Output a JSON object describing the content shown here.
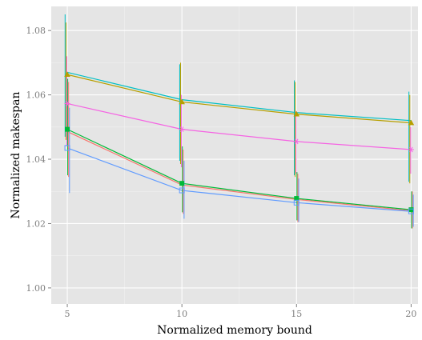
{
  "chart_data": {
    "type": "line",
    "xlabel": "Normalized memory bound",
    "ylabel": "Normalized makespan",
    "xlim": [
      4.3,
      20.3
    ],
    "ylim": [
      0.995,
      1.0875
    ],
    "xticks": [
      5,
      10,
      15,
      20
    ],
    "yticks": [
      1.0,
      1.02,
      1.04,
      1.06,
      1.08
    ],
    "ytick_labels": [
      "1.00",
      "1.02",
      "1.04",
      "1.06",
      "1.08"
    ],
    "xtick_labels": [
      "5",
      "10",
      "15",
      "20"
    ],
    "grid": true,
    "legend": "none",
    "x": [
      5,
      10,
      15,
      20
    ],
    "series": [
      {
        "color": "#00bfc4",
        "marker": "none",
        "values": [
          1.067,
          1.0585,
          1.0545,
          1.052
        ],
        "error_low": [
          1.047,
          1.0395,
          1.035,
          1.033
        ],
        "error_high": [
          1.085,
          1.0695,
          1.0645,
          1.061
        ]
      },
      {
        "color": "#b79f00",
        "marker": "triangle",
        "values": [
          1.0663,
          1.0578,
          1.054,
          1.0513
        ],
        "error_low": [
          1.046,
          1.0385,
          1.0345,
          1.0325
        ],
        "error_high": [
          1.0825,
          1.07,
          1.064,
          1.06
        ]
      },
      {
        "color": "#f564e3",
        "marker": "star",
        "values": [
          1.0573,
          1.0493,
          1.0455,
          1.043
        ],
        "error_low": [
          1.044,
          1.0375,
          1.0355,
          1.0355
        ],
        "error_high": [
          1.072,
          1.06,
          1.055,
          1.05
        ]
      },
      {
        "color": "#00ba38",
        "marker": "square",
        "values": [
          1.0493,
          1.0325,
          1.0278,
          1.0243
        ],
        "error_low": [
          1.035,
          1.0235,
          1.021,
          1.0185
        ],
        "error_high": [
          1.065,
          1.044,
          1.036,
          1.03
        ]
      },
      {
        "color": "#f8766d",
        "marker": "none",
        "values": [
          1.0486,
          1.032,
          1.0275,
          1.024
        ],
        "error_low": [
          1.0345,
          1.023,
          1.0205,
          1.0185
        ],
        "error_high": [
          1.064,
          1.043,
          1.0355,
          1.03
        ]
      },
      {
        "color": "#619cff",
        "marker": "square-open",
        "values": [
          1.0435,
          1.0303,
          1.0265,
          1.0238
        ],
        "error_low": [
          1.0295,
          1.0215,
          1.0205,
          1.019
        ],
        "error_high": [
          1.056,
          1.0395,
          1.034,
          1.029
        ]
      }
    ]
  }
}
